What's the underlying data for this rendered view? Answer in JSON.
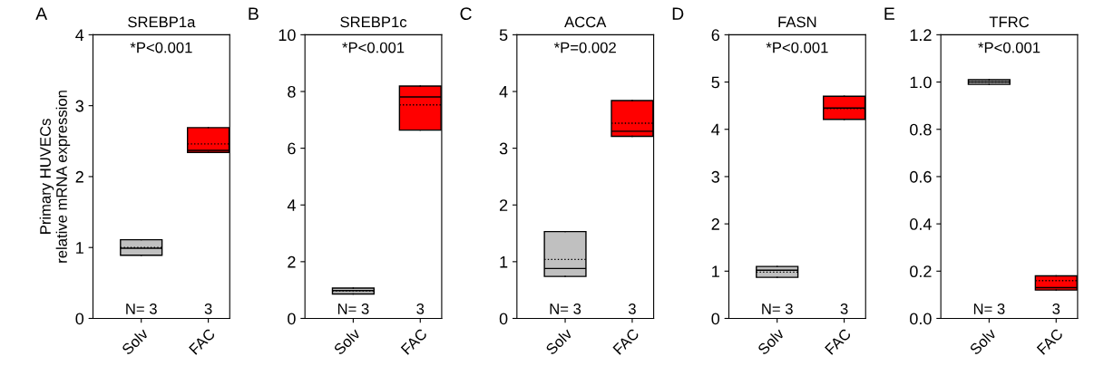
{
  "chart_data": [
    {
      "type": "box",
      "title": "SREBP1a",
      "ylabel": "Primary HUVECs\nrelative mRNA expression",
      "categories": [
        "Solv",
        "FAC"
      ],
      "colors": [
        "#c0c0c0",
        "#ff0000"
      ],
      "ylim": [
        0,
        4
      ],
      "yticks": [
        0,
        1,
        2,
        3,
        4
      ],
      "grid": false,
      "boxes": [
        {
          "low": 0.89,
          "q1": 0.89,
          "median": 0.99,
          "q3": 1.11,
          "high": 1.11,
          "mean": 1.0
        },
        {
          "low": 2.34,
          "q1": 2.34,
          "median": 2.37,
          "q3": 2.69,
          "high": 2.69,
          "mean": 2.46
        }
      ],
      "annotations": [
        "A",
        "*P<0.001",
        "N= 3",
        "3"
      ]
    },
    {
      "type": "box",
      "title": "SREBP1c",
      "categories": [
        "Solv",
        "FAC"
      ],
      "colors": [
        "#c0c0c0",
        "#ff0000"
      ],
      "ylim": [
        0,
        10
      ],
      "yticks": [
        0,
        2,
        4,
        6,
        8,
        10
      ],
      "grid": false,
      "boxes": [
        {
          "low": 0.86,
          "q1": 0.86,
          "median": 0.98,
          "q3": 1.07,
          "high": 1.07,
          "mean": 0.97
        },
        {
          "low": 6.64,
          "q1": 6.64,
          "median": 7.81,
          "q3": 8.19,
          "high": 8.19,
          "mean": 7.53
        }
      ],
      "annotations": [
        "B",
        "*P<0.001",
        "N= 3",
        "3"
      ]
    },
    {
      "type": "box",
      "title": "ACCA",
      "categories": [
        "Solv",
        "FAC"
      ],
      "colors": [
        "#c0c0c0",
        "#ff0000"
      ],
      "ylim": [
        0,
        5
      ],
      "yticks": [
        0,
        1,
        2,
        3,
        4,
        5
      ],
      "grid": false,
      "boxes": [
        {
          "low": 0.74,
          "q1": 0.74,
          "median": 0.88,
          "q3": 1.53,
          "high": 1.53,
          "mean": 1.04
        },
        {
          "low": 3.21,
          "q1": 3.21,
          "median": 3.3,
          "q3": 3.84,
          "high": 3.84,
          "mean": 3.44
        }
      ],
      "annotations": [
        "C",
        "*P=0.002",
        "N= 3",
        "3"
      ]
    },
    {
      "type": "box",
      "title": "FASN",
      "categories": [
        "Solv",
        "FAC"
      ],
      "colors": [
        "#c0c0c0",
        "#ff0000"
      ],
      "ylim": [
        0,
        6
      ],
      "yticks": [
        0,
        1,
        2,
        3,
        4,
        5,
        6
      ],
      "grid": false,
      "boxes": [
        {
          "low": 0.87,
          "q1": 0.87,
          "median": 1.02,
          "q3": 1.1,
          "high": 1.1,
          "mean": 0.98
        },
        {
          "low": 4.21,
          "q1": 4.21,
          "median": 4.45,
          "q3": 4.7,
          "high": 4.7,
          "mean": 4.44
        }
      ],
      "annotations": [
        "D",
        "*P<0.001",
        "N= 3",
        "3"
      ]
    },
    {
      "type": "box",
      "title": "TFRC",
      "categories": [
        "Solv",
        "FAC"
      ],
      "colors": [
        "#c0c0c0",
        "#ff0000"
      ],
      "ylim": [
        0,
        1.2
      ],
      "yticks": [
        {
          "value": 0,
          "label": "0.0"
        },
        0.2,
        0.4,
        0.6,
        0.8,
        {
          "value": 1,
          "label": "1.0"
        },
        1.2
      ],
      "grid": false,
      "boxes": [
        {
          "low": 0.99,
          "q1": 0.99,
          "median": 1.0,
          "q3": 1.01,
          "high": 1.01,
          "mean": 1.0
        },
        {
          "low": 0.12,
          "q1": 0.12,
          "median": 0.13,
          "q3": 0.18,
          "high": 0.18,
          "mean": 0.16
        }
      ],
      "annotations": [
        "E",
        "*P<0.001",
        "N= 3",
        "3"
      ]
    }
  ]
}
